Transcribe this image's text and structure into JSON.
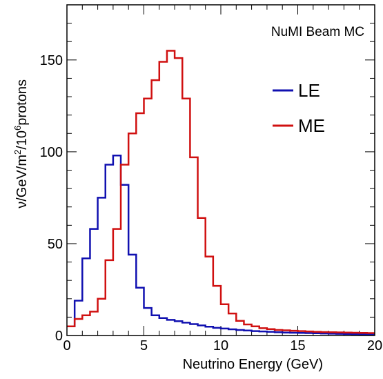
{
  "chart_data": {
    "type": "line",
    "title": "NuMI Beam MC",
    "xlabel": "Neutrino Energy (GeV)",
    "ylabel_parts": [
      "ν/GeV/m",
      "2",
      "/10",
      "6",
      "protons"
    ],
    "xlim": [
      0,
      20
    ],
    "ylim": [
      0,
      180
    ],
    "x_ticks": [
      0,
      5,
      10,
      15,
      20
    ],
    "y_ticks": [
      0,
      50,
      100,
      150
    ],
    "x_tick_labels": [
      "0",
      "5",
      "10",
      "15",
      "20"
    ],
    "y_tick_labels": [
      "0",
      "50",
      "100",
      "150"
    ],
    "legend_position": "top-right",
    "bin_width": 0.5,
    "bin_start": 0,
    "series": [
      {
        "name": "LE",
        "color": "#1010b0",
        "values": [
          5,
          19,
          42,
          58,
          75,
          93,
          98,
          82,
          44,
          26,
          15,
          11,
          9.5,
          8.5,
          7.8,
          7,
          6.2,
          5.5,
          4.8,
          4.2,
          3.8,
          3.4,
          3,
          2.7,
          2.4,
          2.2,
          2,
          1.8,
          1.6,
          1.5,
          1.4,
          1.3,
          1.2,
          1.1,
          1.0,
          0.9,
          0.8,
          0.7,
          0.6,
          0.5
        ]
      },
      {
        "name": "ME",
        "color": "#d01010",
        "values": [
          5,
          9,
          11,
          13,
          20,
          41,
          58,
          93,
          110,
          121,
          129,
          139,
          149,
          155,
          151,
          129,
          97,
          64,
          43,
          27,
          17,
          12,
          8,
          6,
          5,
          4,
          3.5,
          3,
          2.8,
          2.6,
          2.4,
          2.2,
          2,
          1.9,
          1.8,
          1.7,
          1.6,
          1.5,
          1.4,
          1.3
        ]
      }
    ]
  }
}
